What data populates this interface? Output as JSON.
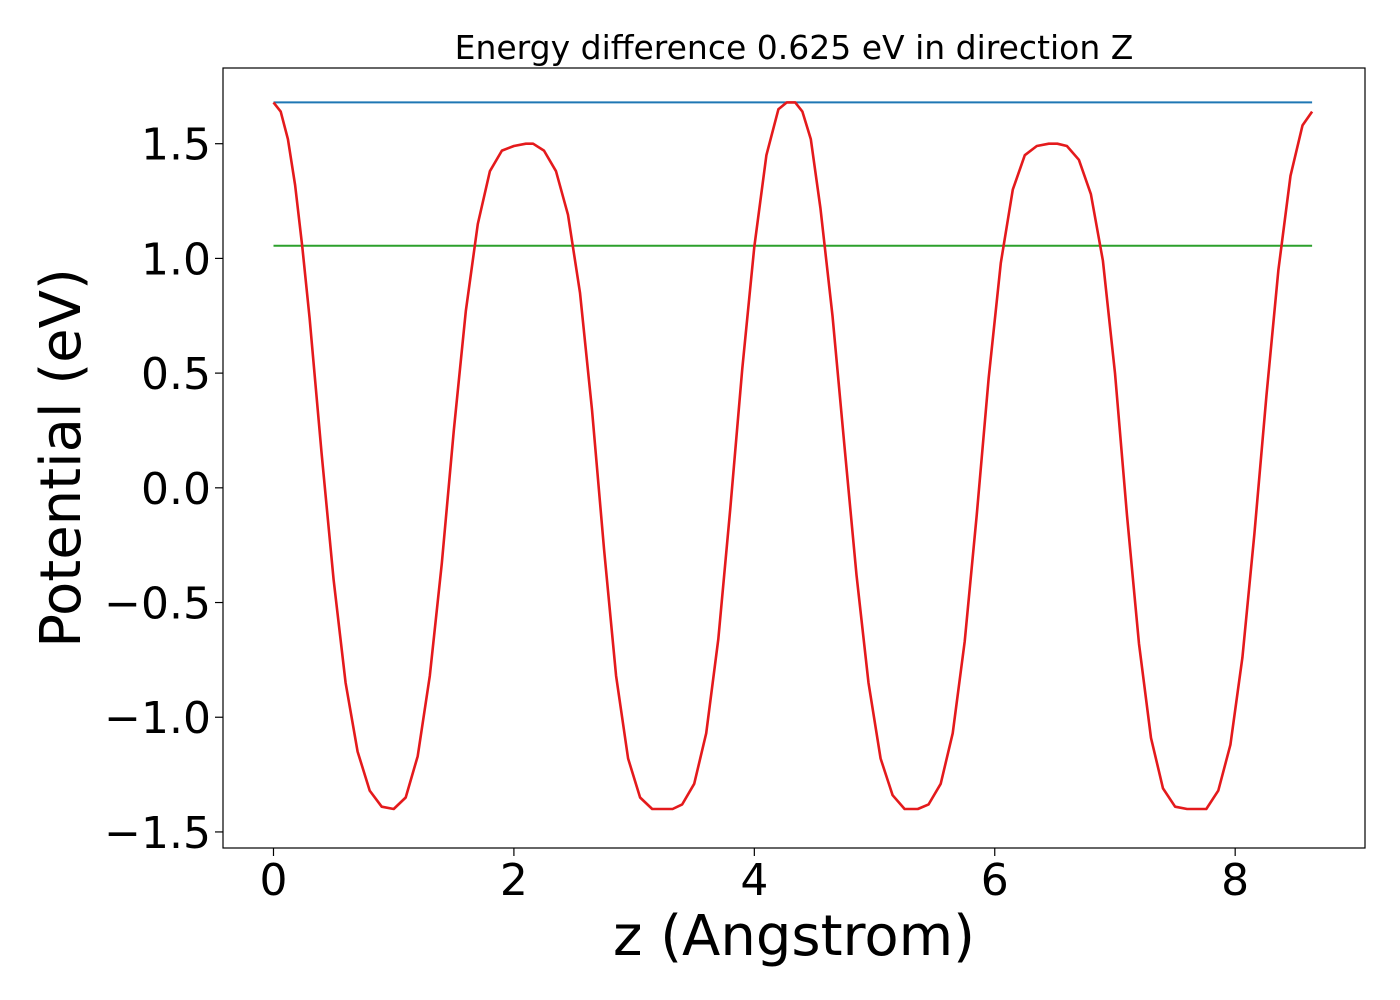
{
  "chart_data": {
    "type": "line",
    "title": "Energy difference 0.625 eV in direction Z",
    "xlabel": "z (Angstrom)",
    "ylabel": "Potential (eV)",
    "xlim": [
      -0.42,
      9.08
    ],
    "ylim": [
      -1.57,
      1.83
    ],
    "xticks": [
      0,
      2,
      4,
      6,
      8
    ],
    "xtick_labels": [
      "0",
      "2",
      "4",
      "6",
      "8"
    ],
    "yticks": [
      -1.5,
      -1.0,
      -0.5,
      0.0,
      0.5,
      1.0,
      1.5
    ],
    "ytick_labels": [
      "−1.5",
      "−1.0",
      "−0.5",
      "0.0",
      "0.5",
      "1.0",
      "1.5"
    ],
    "grid": false,
    "series": [
      {
        "color": "#1f77b4",
        "x": [
          0,
          8.64
        ],
        "y": [
          1.68,
          1.68
        ]
      },
      {
        "color": "#2ca02c",
        "x": [
          0,
          8.64
        ],
        "y": [
          1.055,
          1.055
        ]
      },
      {
        "color": "#e41a1c",
        "x": [
          0.0,
          0.06,
          0.12,
          0.18,
          0.24,
          0.3,
          0.4,
          0.5,
          0.6,
          0.7,
          0.8,
          0.9,
          1.0,
          1.1,
          1.2,
          1.3,
          1.4,
          1.5,
          1.6,
          1.7,
          1.8,
          1.9,
          2.0,
          2.1,
          2.16,
          2.25,
          2.35,
          2.45,
          2.55,
          2.65,
          2.75,
          2.85,
          2.95,
          3.05,
          3.15,
          3.25,
          3.32,
          3.4,
          3.5,
          3.6,
          3.7,
          3.8,
          3.9,
          4.0,
          4.1,
          4.2,
          4.27,
          4.34,
          4.4,
          4.47,
          4.55,
          4.65,
          4.75,
          4.85,
          4.95,
          5.05,
          5.15,
          5.25,
          5.36,
          5.45,
          5.55,
          5.65,
          5.75,
          5.85,
          5.95,
          6.05,
          6.15,
          6.25,
          6.35,
          6.45,
          6.52,
          6.6,
          6.7,
          6.8,
          6.9,
          7.0,
          7.1,
          7.2,
          7.3,
          7.4,
          7.5,
          7.6,
          7.68,
          7.76,
          7.86,
          7.96,
          8.06,
          8.16,
          8.26,
          8.36,
          8.46,
          8.56,
          8.64
        ],
        "y": [
          1.68,
          1.64,
          1.52,
          1.32,
          1.05,
          0.74,
          0.15,
          -0.4,
          -0.85,
          -1.15,
          -1.32,
          -1.39,
          -1.4,
          -1.35,
          -1.17,
          -0.82,
          -0.33,
          0.25,
          0.77,
          1.15,
          1.38,
          1.47,
          1.49,
          1.5,
          1.5,
          1.47,
          1.38,
          1.19,
          0.85,
          0.34,
          -0.27,
          -0.82,
          -1.18,
          -1.35,
          -1.4,
          -1.4,
          -1.4,
          -1.38,
          -1.29,
          -1.07,
          -0.66,
          -0.09,
          0.52,
          1.05,
          1.45,
          1.65,
          1.68,
          1.68,
          1.64,
          1.52,
          1.22,
          0.75,
          0.18,
          -0.38,
          -0.85,
          -1.18,
          -1.34,
          -1.4,
          -1.4,
          -1.38,
          -1.29,
          -1.07,
          -0.67,
          -0.12,
          0.48,
          0.98,
          1.3,
          1.45,
          1.49,
          1.5,
          1.5,
          1.49,
          1.43,
          1.28,
          0.99,
          0.5,
          -0.12,
          -0.68,
          -1.09,
          -1.31,
          -1.39,
          -1.4,
          -1.4,
          -1.4,
          -1.32,
          -1.12,
          -0.74,
          -0.2,
          0.4,
          0.95,
          1.36,
          1.58,
          1.64
        ]
      }
    ]
  }
}
